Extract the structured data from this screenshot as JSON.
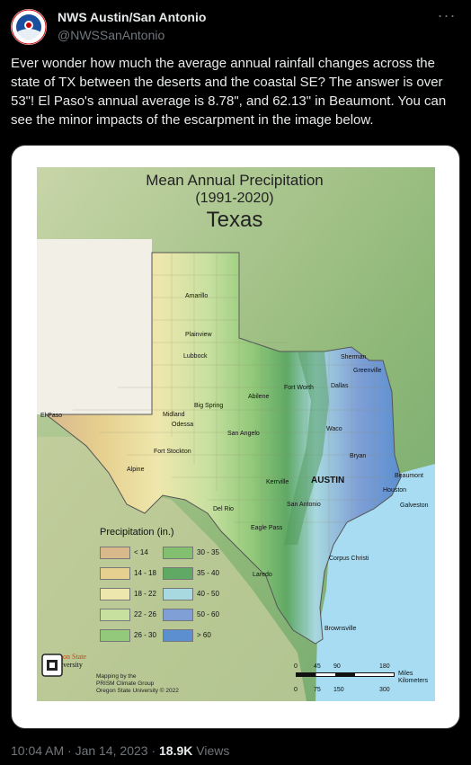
{
  "account": {
    "display_name": "NWS Austin/San Antonio",
    "handle": "@NWSSanAntonio",
    "avatar_text": "NOAA",
    "avatar_icon": "nws-logo-icon"
  },
  "more_label": "···",
  "tweet": {
    "text": "Ever wonder how much the average annual rainfall changes across the state of TX between the deserts and the coastal SE? The answer is over 53\"! El Paso's annual average is 8.78\", and 62.13\" in Beaumont. You can see the minor impacts of the escarpment in the image below."
  },
  "map": {
    "title_line1": "Mean Annual Precipitation",
    "title_line2": "(1991-2020)",
    "title_line3": "Texas",
    "legend_title": "Precipitation (in.)",
    "legend": [
      {
        "label": "< 14",
        "color": "#d9b98c"
      },
      {
        "label": "14 - 18",
        "color": "#e6d08f"
      },
      {
        "label": "18 - 22",
        "color": "#eee7ad"
      },
      {
        "label": "22 - 26",
        "color": "#c7e0a0"
      },
      {
        "label": "26 - 30",
        "color": "#93c97a"
      },
      {
        "label": "30 - 35",
        "color": "#82c070"
      },
      {
        "label": "35 - 40",
        "color": "#5fa965"
      },
      {
        "label": "40 - 50",
        "color": "#a8d8e0"
      },
      {
        "label": "50 - 60",
        "color": "#7f9fd6"
      },
      {
        "label": "> 60",
        "color": "#5b8fd0"
      }
    ],
    "cities": [
      {
        "name": "Amarillo"
      },
      {
        "name": "Plainview"
      },
      {
        "name": "Lubbock"
      },
      {
        "name": "Sherman"
      },
      {
        "name": "Greenville"
      },
      {
        "name": "Fort Worth"
      },
      {
        "name": "Dallas"
      },
      {
        "name": "Abilene"
      },
      {
        "name": "Big Spring"
      },
      {
        "name": "Midland"
      },
      {
        "name": "Odessa"
      },
      {
        "name": "El Paso"
      },
      {
        "name": "San Angelo"
      },
      {
        "name": "Waco"
      },
      {
        "name": "Fort Stockton"
      },
      {
        "name": "Bryan"
      },
      {
        "name": "Alpine"
      },
      {
        "name": "AUSTIN"
      },
      {
        "name": "Beaumont"
      },
      {
        "name": "Kerrville"
      },
      {
        "name": "Houston"
      },
      {
        "name": "Galveston"
      },
      {
        "name": "Del Rio"
      },
      {
        "name": "San Antonio"
      },
      {
        "name": "Eagle Pass"
      },
      {
        "name": "Corpus Christi"
      },
      {
        "name": "Laredo"
      },
      {
        "name": "Brownsville"
      }
    ],
    "logo_line1": "Oregon State",
    "logo_line2": "University",
    "credit_line1": "Mapping by the",
    "credit_line2": "PRISM Climate Group",
    "credit_line3": "Oregon State University © 2022",
    "scale_miles": [
      "0",
      "45",
      "90",
      "180"
    ],
    "scale_miles_unit": "Miles",
    "scale_km_unit": "Kilometers",
    "scale_km": [
      "0",
      "75",
      "150",
      "300"
    ]
  },
  "footer": {
    "time": "10:04 AM · Jan 14, 2023 · ",
    "views_count": "18.9K",
    "views_label": " Views"
  }
}
